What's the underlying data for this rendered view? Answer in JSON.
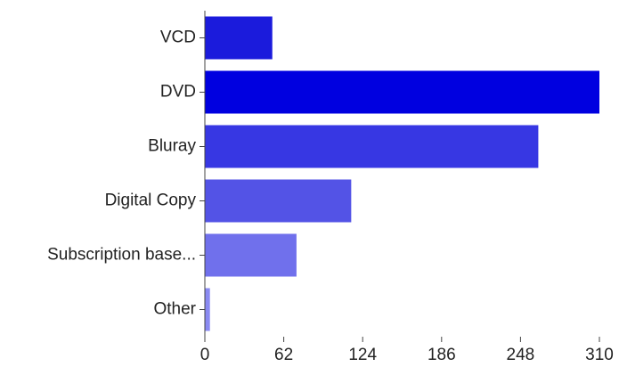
{
  "chart_data": {
    "type": "bar",
    "orientation": "horizontal",
    "categories": [
      "VCD",
      "DVD",
      "Bluray",
      "Digital Copy",
      "Subscription base...",
      "Other"
    ],
    "values": [
      53,
      310,
      262,
      115,
      72,
      4
    ],
    "colors": [
      "#1b1bdc",
      "#0000e0",
      "#3737e3",
      "#5353e6",
      "#7070ec",
      "#8a8af2"
    ],
    "xlim": [
      0,
      310
    ],
    "xticks": [
      0,
      62,
      124,
      186,
      248,
      310
    ]
  }
}
